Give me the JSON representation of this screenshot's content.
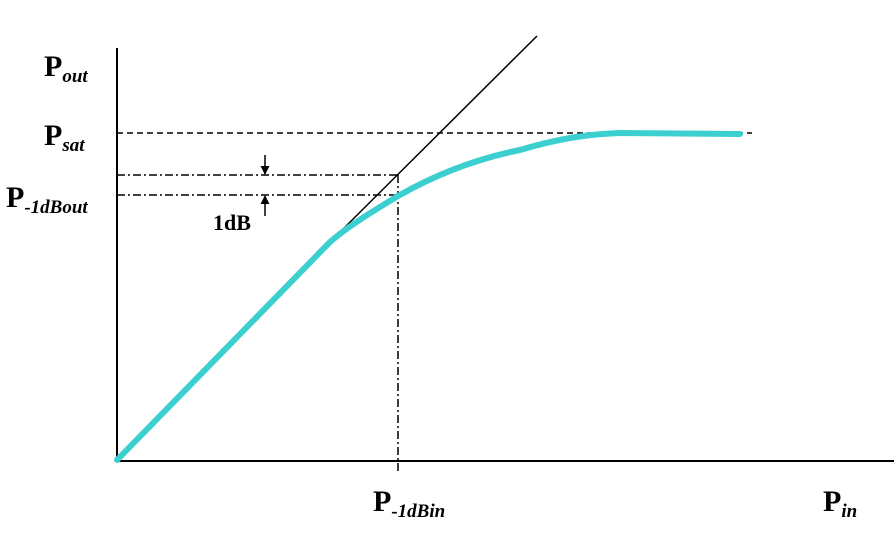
{
  "labels": {
    "y_axis": {
      "main": "P",
      "sub": "out"
    },
    "x_axis": {
      "main": "P",
      "sub": "in"
    },
    "p_sat": {
      "main": "P",
      "sub": "sat"
    },
    "p_1db_out": {
      "main": "P",
      "sub": "-1dBout"
    },
    "p_1db_in": {
      "main": "P",
      "sub": "-1dBin"
    },
    "gain_drop": "1dB"
  },
  "colors": {
    "curve": "#3ccfcf",
    "lines": "#000000"
  }
}
